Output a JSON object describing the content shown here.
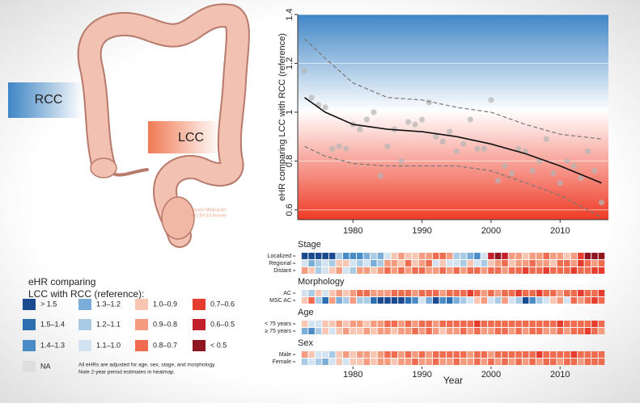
{
  "illustration": {
    "rcc_label": "RCC",
    "lcc_label": "LCC",
    "credit": [
      "Servier Medical Art",
      "(CC BY 3.0 license)"
    ]
  },
  "chart_data": [
    {
      "type": "scatter",
      "y_label": "eHR comparing LCC with RCC (reference)",
      "x": [
        1973,
        1974,
        1975,
        1976,
        1977,
        1978,
        1979,
        1980,
        1981,
        1982,
        1983,
        1984,
        1985,
        1986,
        1987,
        1988,
        1989,
        1990,
        1991,
        1992,
        1993,
        1994,
        1995,
        1996,
        1997,
        1998,
        1999,
        2000,
        2001,
        2002,
        2003,
        2004,
        2005,
        2006,
        2007,
        2008,
        2009,
        2010,
        2011,
        2012,
        2013,
        2014,
        2015,
        2016
      ],
      "values": [
        1.17,
        1.06,
        1.03,
        1.02,
        0.85,
        0.86,
        0.85,
        0.95,
        0.93,
        0.97,
        1.0,
        0.74,
        0.86,
        0.93,
        0.8,
        0.96,
        0.95,
        0.97,
        1.04,
        0.9,
        0.88,
        0.92,
        0.84,
        0.87,
        0.97,
        0.85,
        0.85,
        1.05,
        0.72,
        0.78,
        0.75,
        0.85,
        0.84,
        0.76,
        0.8,
        0.89,
        0.75,
        0.71,
        0.8,
        0.78,
        0.73,
        0.84,
        0.76,
        0.63
      ],
      "point_color": "#b5b5b5",
      "fit": {
        "x": [
          1973,
          1976,
          1980,
          1985,
          1990,
          1995,
          2000,
          2005,
          2010,
          2016
        ],
        "values": [
          1.06,
          1.0,
          0.95,
          0.93,
          0.92,
          0.9,
          0.87,
          0.83,
          0.78,
          0.71
        ],
        "upper": [
          1.3,
          1.22,
          1.12,
          1.06,
          1.05,
          1.02,
          1.0,
          0.95,
          0.91,
          0.89
        ],
        "lower": [
          0.86,
          0.82,
          0.79,
          0.78,
          0.78,
          0.78,
          0.76,
          0.71,
          0.66,
          0.57
        ],
        "color": "#111111",
        "ci_color": "#777777"
      },
      "xlim": [
        1972,
        2017
      ],
      "ylim": [
        0.56,
        1.4
      ],
      "xticks": [
        1980,
        1990,
        2000,
        2010
      ],
      "yticks": [
        0.6,
        0.8,
        1,
        1.2,
        1.4
      ],
      "grid": true
    },
    {
      "type": "heatmap",
      "x_label": "Year",
      "x": [
        1973,
        1974,
        1975,
        1976,
        1977,
        1978,
        1979,
        1980,
        1981,
        1982,
        1983,
        1984,
        1985,
        1986,
        1987,
        1988,
        1989,
        1990,
        1991,
        1992,
        1993,
        1994,
        1995,
        1996,
        1997,
        1998,
        1999,
        2000,
        2001,
        2002,
        2003,
        2004,
        2005,
        2006,
        2007,
        2008,
        2009,
        2010,
        2011,
        2012,
        2013,
        2014,
        2015,
        2016
      ],
      "xlim": [
        1972,
        2017
      ],
      "xticks": [
        1980,
        1990,
        2000,
        2010
      ],
      "groups": [
        {
          "name": "Stage",
          "rows": [
            {
              "name": "Localized",
              "values": [
                1.6,
                1.6,
                1.6,
                1.6,
                1.6,
                1.15,
                1.35,
                1.35,
                1.35,
                1.25,
                1.15,
                1.25,
                1.05,
                0.95,
                0.85,
                0.95,
                0.95,
                0.85,
                0.85,
                0.75,
                0.75,
                0.85,
                1.15,
                1.15,
                1.25,
                1.35,
                1.05,
                0.55,
                0.45,
                0.55,
                0.85,
                0.85,
                0.95,
                0.85,
                0.85,
                0.75,
                0.85,
                0.85,
                0.95,
                0.85,
                0.65,
                0.45,
                0.45,
                0.45
              ]
            },
            {
              "name": "Regional",
              "values": [
                1.05,
                1.25,
                1.15,
                1.05,
                1.15,
                0.95,
                0.95,
                1.05,
                1.15,
                1.05,
                1.25,
                1.15,
                0.85,
                0.85,
                0.95,
                0.75,
                0.95,
                0.85,
                0.75,
                1.05,
                0.95,
                1.05,
                1.05,
                1.15,
                0.95,
                1.05,
                1.15,
                0.95,
                0.85,
                0.75,
                0.95,
                0.85,
                0.85,
                0.75,
                0.85,
                0.85,
                0.95,
                0.75,
                0.75,
                0.85,
                0.65,
                0.75,
                0.85,
                0.75
              ]
            },
            {
              "name": "Distant",
              "values": [
                0.85,
                0.95,
                1.15,
                1.05,
                0.95,
                0.85,
                1.05,
                1.15,
                0.85,
                0.85,
                0.95,
                0.85,
                0.75,
                0.85,
                0.75,
                0.85,
                0.75,
                0.75,
                0.85,
                0.85,
                0.75,
                0.85,
                0.75,
                0.85,
                0.75,
                0.75,
                0.85,
                0.75,
                0.75,
                0.85,
                0.75,
                0.75,
                0.65,
                0.75,
                0.75,
                0.65,
                0.75,
                0.75,
                0.75,
                0.65,
                0.75,
                0.75,
                0.65,
                0.65
              ]
            }
          ]
        },
        {
          "name": "Morphology",
          "rows": [
            {
              "name": "AC",
              "values": [
                1.05,
                1.15,
                0.95,
                1.05,
                0.95,
                0.85,
                0.95,
                0.85,
                0.75,
                0.75,
                0.85,
                0.85,
                0.85,
                0.75,
                0.75,
                0.75,
                0.85,
                0.75,
                0.75,
                0.75,
                0.85,
                0.75,
                0.75,
                0.75,
                0.65,
                0.75,
                0.85,
                0.75,
                0.85,
                0.75,
                0.75,
                0.65,
                0.75,
                0.75,
                0.65,
                0.75,
                0.75,
                0.85,
                0.75,
                0.75,
                0.65,
                0.75,
                0.75,
                0.65
              ]
            },
            {
              "name": "MSC AC",
              "values": [
                0.95,
                0.75,
                1.15,
                1.45,
                0.85,
                1.25,
                1.15,
                0.85,
                1.15,
                1.15,
                1.45,
                1.6,
                1.6,
                1.6,
                1.6,
                1.45,
                1.35,
                1.05,
                1.25,
                1.6,
                1.35,
                1.45,
                1.25,
                1.15,
                1.05,
                0.95,
                0.85,
                1.05,
                1.15,
                0.85,
                1.05,
                1.15,
                1.6,
                1.35,
                1.15,
                1.05,
                0.95,
                0.85,
                1.05,
                0.75,
                0.85,
                0.75,
                0.65,
                0.75
              ]
            }
          ]
        },
        {
          "name": "Age",
          "rows": [
            {
              "name": "< 75 years",
              "values": [
                0.95,
                1.05,
                1.05,
                0.95,
                0.95,
                0.85,
                0.95,
                0.85,
                0.85,
                0.95,
                0.85,
                0.85,
                0.75,
                0.75,
                0.85,
                0.75,
                0.85,
                0.75,
                0.75,
                0.85,
                0.75,
                0.75,
                0.75,
                0.75,
                0.75,
                0.65,
                0.75,
                0.75,
                0.75,
                0.75,
                0.75,
                0.75,
                0.75,
                0.75,
                0.75,
                0.75,
                0.75,
                0.65,
                0.75,
                0.75,
                0.75,
                0.75,
                0.65,
                0.75
              ]
            },
            {
              "name": "≥ 75 years",
              "values": [
                1.25,
                1.35,
                1.15,
                0.95,
                1.05,
                0.95,
                0.85,
                0.95,
                0.95,
                0.85,
                0.95,
                0.85,
                0.85,
                0.95,
                0.85,
                0.85,
                0.75,
                0.85,
                0.75,
                0.85,
                0.95,
                0.85,
                0.85,
                0.75,
                0.85,
                0.75,
                0.85,
                0.85,
                0.75,
                0.75,
                0.85,
                0.75,
                0.85,
                0.75,
                0.75,
                0.85,
                0.85,
                0.75,
                0.85,
                0.75,
                0.75,
                0.65,
                0.75,
                0.85
              ]
            }
          ]
        },
        {
          "name": "Sex",
          "rows": [
            {
              "name": "Male",
              "values": [
                0.85,
                0.95,
                1.05,
                1.05,
                1.15,
                0.95,
                0.85,
                0.95,
                0.85,
                0.85,
                0.95,
                0.85,
                0.75,
                0.75,
                0.85,
                0.75,
                0.85,
                0.75,
                0.85,
                0.75,
                0.75,
                0.75,
                0.75,
                0.75,
                0.85,
                0.75,
                0.75,
                0.85,
                0.75,
                0.75,
                0.75,
                0.75,
                0.75,
                0.75,
                0.65,
                0.75,
                0.75,
                0.75,
                0.75,
                0.65,
                0.75,
                0.75,
                0.75,
                0.75
              ]
            },
            {
              "name": "Female",
              "values": [
                1.15,
                1.05,
                1.15,
                1.25,
                1.05,
                0.95,
                1.05,
                0.95,
                0.95,
                0.85,
                0.95,
                0.85,
                0.85,
                0.95,
                0.85,
                0.85,
                0.75,
                0.85,
                0.85,
                0.75,
                0.85,
                0.85,
                0.75,
                0.85,
                0.85,
                0.75,
                0.85,
                0.75,
                0.85,
                0.75,
                0.85,
                0.75,
                0.85,
                0.75,
                0.85,
                0.75,
                0.75,
                0.85,
                0.75,
                0.75,
                0.85,
                0.75,
                0.75,
                0.75
              ]
            }
          ]
        }
      ],
      "legend": {
        "title": [
          "eHR comparing",
          "LCC with RCC (reference):"
        ],
        "breaks": [
          1.5,
          1.4,
          1.3,
          1.2,
          1.1,
          1.0,
          0.9,
          0.8,
          0.7,
          0.6,
          0.5
        ],
        "items": [
          {
            "label": "> 1.5",
            "color": "#1b4a8f"
          },
          {
            "label": "1.5–1.4",
            "color": "#2c6fb0"
          },
          {
            "label": "1.4–1.3",
            "color": "#4a8cc6"
          },
          {
            "label": "1.3–1.2",
            "color": "#7aadd8"
          },
          {
            "label": "1.2–1.1",
            "color": "#a9cbe5"
          },
          {
            "label": "1.1–1.0",
            "color": "#d4e3f1"
          },
          {
            "label": "1.0–0.9",
            "color": "#f8c6b2"
          },
          {
            "label": "0.9–0.8",
            "color": "#f59c80"
          },
          {
            "label": "0.8–0.7",
            "color": "#ef6c50"
          },
          {
            "label": "0.7–0.6",
            "color": "#e63c2e"
          },
          {
            "label": "0.6–0.5",
            "color": "#c1202a"
          },
          {
            "label": "< 0.5",
            "color": "#8e1620"
          },
          {
            "label": "NA",
            "color": "#dedede"
          }
        ],
        "note": [
          "All eHRs are adjusted for age, sex, stage, and morphology.",
          "Note 2-year period estimates in heatmap."
        ]
      }
    }
  ]
}
